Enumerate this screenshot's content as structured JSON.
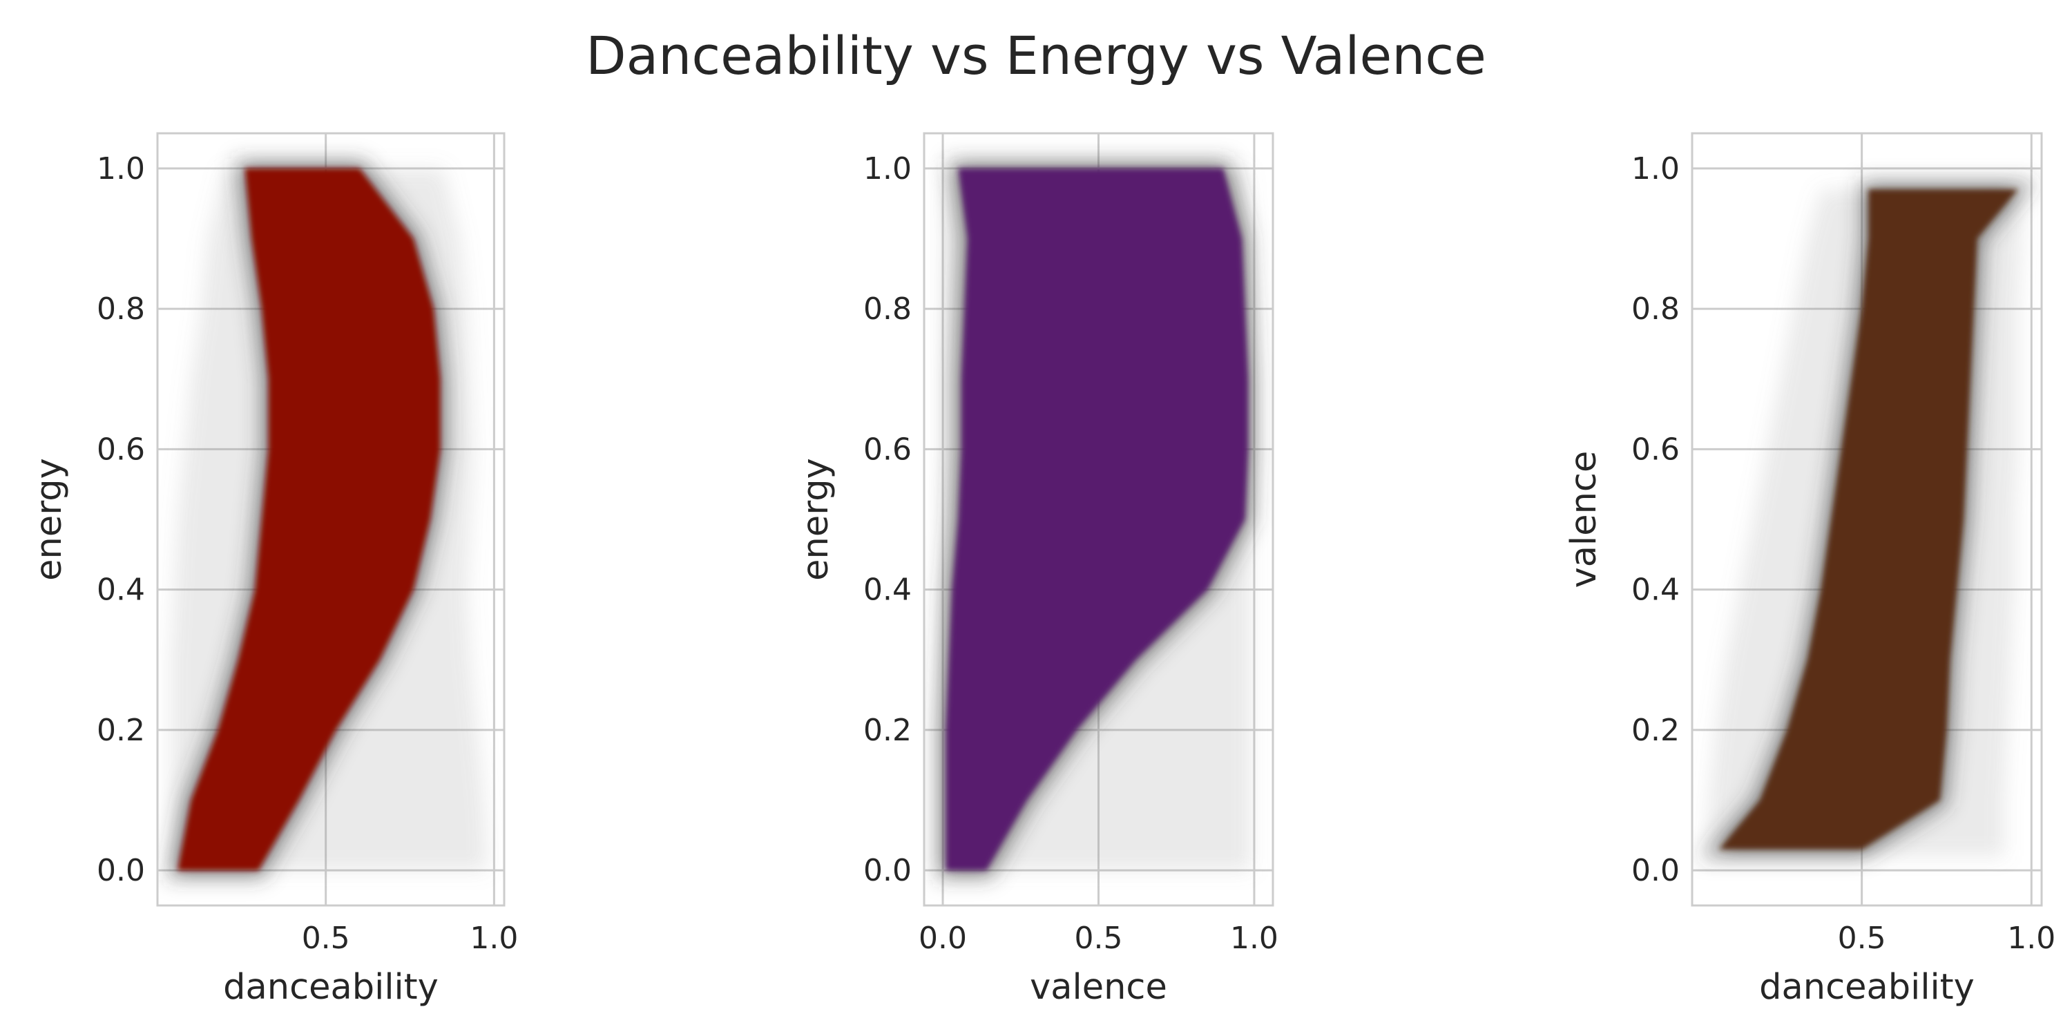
{
  "figure": {
    "title": "Danceability vs Energy vs Valence"
  },
  "chart_data": [
    {
      "type": "scatter",
      "title": "",
      "xlabel": "danceability",
      "ylabel": "energy",
      "xlim": [
        0.0,
        1.03
      ],
      "ylim": [
        -0.05,
        1.05
      ],
      "xticks": [
        0.5,
        1.0
      ],
      "xtick_labels": [
        "0.5",
        "1.0"
      ],
      "yticks": [
        0.0,
        0.2,
        0.4,
        0.6,
        0.8,
        1.0
      ],
      "ytick_labels": [
        "0.0",
        "0.2",
        "0.4",
        "0.6",
        "0.8",
        "1.0"
      ],
      "grid": true,
      "color": "#8b0a00",
      "dense_region": {
        "y": [
          0.0,
          0.1,
          0.2,
          0.3,
          0.4,
          0.5,
          0.6,
          0.7,
          0.8,
          0.9,
          1.0
        ],
        "x_low": [
          0.06,
          0.1,
          0.18,
          0.24,
          0.29,
          0.31,
          0.33,
          0.33,
          0.31,
          0.28,
          0.26
        ],
        "x_high": [
          0.3,
          0.42,
          0.53,
          0.66,
          0.76,
          0.81,
          0.84,
          0.84,
          0.82,
          0.76,
          0.6
        ]
      },
      "sparse_region": {
        "y": [
          0.0,
          0.1,
          0.2,
          0.3,
          0.4,
          0.5,
          0.6,
          0.7,
          0.8,
          0.9,
          1.0
        ],
        "x_low": [
          0.04,
          0.04,
          0.04,
          0.04,
          0.05,
          0.06,
          0.08,
          0.1,
          0.13,
          0.15,
          0.2
        ],
        "x_high": [
          0.98,
          0.97,
          0.95,
          0.93,
          0.92,
          0.93,
          0.94,
          0.93,
          0.92,
          0.9,
          0.85
        ]
      }
    },
    {
      "type": "scatter",
      "title": "",
      "xlabel": "valence",
      "ylabel": "energy",
      "xlim": [
        -0.06,
        1.06
      ],
      "ylim": [
        -0.05,
        1.05
      ],
      "xticks": [
        0.0,
        0.5,
        1.0
      ],
      "xtick_labels": [
        "0.0",
        "0.5",
        "1.0"
      ],
      "yticks": [
        0.0,
        0.2,
        0.4,
        0.6,
        0.8,
        1.0
      ],
      "ytick_labels": [
        "0.0",
        "0.2",
        "0.4",
        "0.6",
        "0.8",
        "1.0"
      ],
      "grid": true,
      "color": "#581d6e",
      "dense_region": {
        "y": [
          0.0,
          0.1,
          0.2,
          0.3,
          0.4,
          0.5,
          0.6,
          0.7,
          0.8,
          0.9,
          1.0
        ],
        "x_low": [
          0.01,
          0.01,
          0.01,
          0.02,
          0.03,
          0.05,
          0.06,
          0.06,
          0.07,
          0.08,
          0.05
        ],
        "x_high": [
          0.14,
          0.27,
          0.43,
          0.62,
          0.85,
          0.97,
          0.98,
          0.98,
          0.97,
          0.96,
          0.9
        ]
      },
      "sparse_region": {
        "y": [
          0.0,
          0.1,
          0.2,
          0.3,
          0.4,
          0.5,
          0.6,
          0.7,
          0.8,
          0.9,
          1.0
        ],
        "x_low": [
          0.0,
          0.0,
          0.0,
          0.0,
          0.0,
          0.0,
          0.0,
          0.0,
          0.0,
          0.0,
          0.0
        ],
        "x_high": [
          0.99,
          0.99,
          0.99,
          0.99,
          0.99,
          0.99,
          0.99,
          0.99,
          0.99,
          0.99,
          0.97
        ]
      }
    },
    {
      "type": "scatter",
      "title": "",
      "xlabel": "danceability",
      "ylabel": "valence",
      "xlim": [
        0.0,
        1.03
      ],
      "ylim": [
        -0.05,
        1.05
      ],
      "xticks": [
        0.5,
        1.0
      ],
      "xtick_labels": [
        "0.5",
        "1.0"
      ],
      "yticks": [
        0.0,
        0.2,
        0.4,
        0.6,
        0.8,
        1.0
      ],
      "ytick_labels": [
        "0.0",
        "0.2",
        "0.4",
        "0.6",
        "0.8",
        "1.0"
      ],
      "grid": true,
      "color": "#5a2d12",
      "dense_region": {
        "y": [
          0.03,
          0.1,
          0.2,
          0.3,
          0.4,
          0.5,
          0.6,
          0.7,
          0.8,
          0.9,
          0.97
        ],
        "x_low": [
          0.08,
          0.2,
          0.28,
          0.34,
          0.38,
          0.41,
          0.44,
          0.47,
          0.5,
          0.52,
          0.52
        ],
        "x_high": [
          0.5,
          0.73,
          0.75,
          0.76,
          0.78,
          0.8,
          0.81,
          0.82,
          0.83,
          0.84,
          0.96
        ]
      },
      "sparse_region": {
        "y": [
          0.02,
          0.1,
          0.2,
          0.3,
          0.4,
          0.5,
          0.6,
          0.7,
          0.8,
          0.9,
          0.97
        ],
        "x_low": [
          0.04,
          0.05,
          0.07,
          0.1,
          0.14,
          0.18,
          0.22,
          0.26,
          0.3,
          0.34,
          0.38
        ],
        "x_high": [
          0.92,
          0.92,
          0.93,
          0.94,
          0.95,
          0.95,
          0.96,
          0.96,
          0.96,
          0.97,
          0.97
        ]
      }
    }
  ]
}
